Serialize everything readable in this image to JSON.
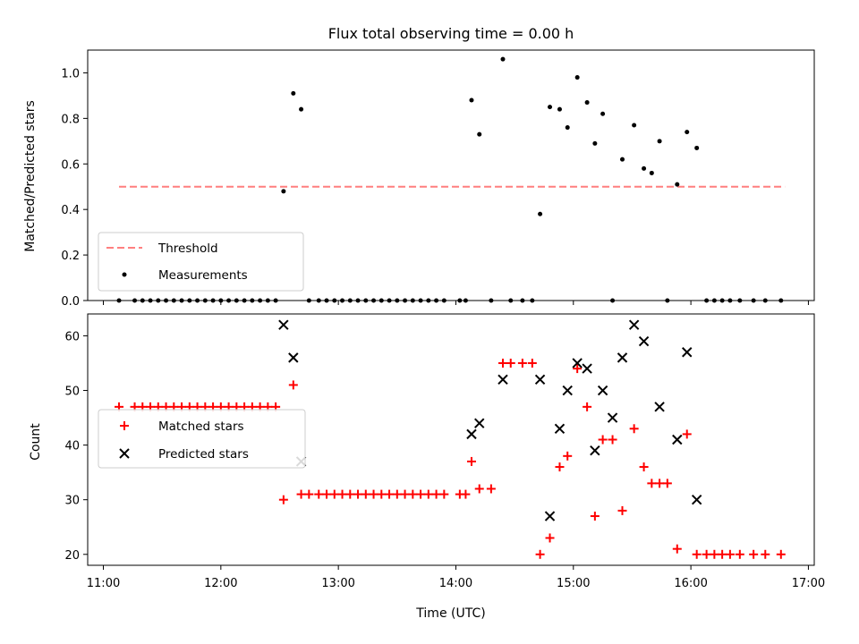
{
  "colors": {
    "threshold": "#ff7f7f",
    "measurements": "#000000",
    "matched": "#ff0000",
    "predicted": "#000000"
  },
  "chart_data": [
    {
      "type": "scatter",
      "title": "Flux total observing time = 0.00 h",
      "xlabel": "",
      "ylabel": "Matched/Predicted stars",
      "xlim": [
        "10:52",
        "17:03"
      ],
      "ylim": [
        0,
        1.1
      ],
      "yticks": [
        0.0,
        0.2,
        0.4,
        0.6,
        0.8,
        1.0
      ],
      "ytick_labels": [
        "0.0",
        "0.2",
        "0.4",
        "0.6",
        "0.8",
        "1.0"
      ],
      "xticks": [
        "11:00",
        "12:00",
        "13:00",
        "14:00",
        "15:00",
        "16:00",
        "17:00"
      ],
      "legend_position": "lower-left",
      "series": [
        {
          "name": "Threshold",
          "style": "dashed-line",
          "x": [
            "11:08",
            "16:48"
          ],
          "y": [
            0.5,
            0.5
          ]
        },
        {
          "name": "Measurements",
          "style": "dot",
          "x": [
            "11:08",
            "11:16",
            "11:20",
            "11:24",
            "11:28",
            "11:32",
            "11:36",
            "11:40",
            "11:44",
            "11:48",
            "11:52",
            "11:56",
            "12:00",
            "12:04",
            "12:08",
            "12:12",
            "12:16",
            "12:20",
            "12:24",
            "12:28",
            "12:32",
            "12:37",
            "12:41",
            "12:45",
            "12:50",
            "12:54",
            "12:58",
            "13:02",
            "13:06",
            "13:10",
            "13:14",
            "13:18",
            "13:22",
            "13:26",
            "13:30",
            "13:34",
            "13:38",
            "13:42",
            "13:46",
            "13:50",
            "13:54",
            "14:02",
            "14:05",
            "14:08",
            "14:12",
            "14:18",
            "14:24",
            "14:28",
            "14:34",
            "14:39",
            "14:43",
            "14:48",
            "14:53",
            "14:57",
            "15:02",
            "15:07",
            "15:11",
            "15:15",
            "15:20",
            "15:25",
            "15:31",
            "15:36",
            "15:40",
            "15:44",
            "15:48",
            "15:53",
            "15:58",
            "16:03",
            "16:08",
            "16:12",
            "16:16",
            "16:20",
            "16:25",
            "16:32",
            "16:38",
            "16:46"
          ],
          "y": [
            0,
            0,
            0,
            0,
            0,
            0,
            0,
            0,
            0,
            0,
            0,
            0,
            0,
            0,
            0,
            0,
            0,
            0,
            0,
            0,
            0.48,
            0.91,
            0.84,
            0,
            0,
            0,
            0,
            0,
            0,
            0,
            0,
            0,
            0,
            0,
            0,
            0,
            0,
            0,
            0,
            0,
            0,
            0,
            0,
            0.88,
            0.73,
            0,
            1.06,
            0,
            0,
            0,
            0.38,
            0.85,
            0.84,
            0.76,
            0.98,
            0.87,
            0.69,
            0.82,
            0,
            0.62,
            0.77,
            0.58,
            0.56,
            0.7,
            0,
            0.51,
            0.74,
            0.67,
            0,
            0,
            0,
            0,
            0,
            0,
            0,
            0
          ]
        }
      ]
    },
    {
      "type": "scatter",
      "title": "",
      "xlabel": "Time (UTC)",
      "ylabel": "Count",
      "xlim": [
        "10:52",
        "17:03"
      ],
      "ylim": [
        18,
        64
      ],
      "yticks": [
        20,
        30,
        40,
        50,
        60
      ],
      "ytick_labels": [
        "20",
        "30",
        "40",
        "50",
        "60"
      ],
      "xticks": [
        "11:00",
        "12:00",
        "13:00",
        "14:00",
        "15:00",
        "16:00",
        "17:00"
      ],
      "legend_position": "center-left",
      "series": [
        {
          "name": "Matched stars",
          "style": "plus",
          "x": [
            "11:08",
            "11:16",
            "11:20",
            "11:24",
            "11:28",
            "11:32",
            "11:36",
            "11:40",
            "11:44",
            "11:48",
            "11:52",
            "11:56",
            "12:00",
            "12:04",
            "12:08",
            "12:12",
            "12:16",
            "12:20",
            "12:24",
            "12:28",
            "12:32",
            "12:37",
            "12:41",
            "12:45",
            "12:50",
            "12:54",
            "12:58",
            "13:02",
            "13:06",
            "13:10",
            "13:14",
            "13:18",
            "13:22",
            "13:26",
            "13:30",
            "13:34",
            "13:38",
            "13:42",
            "13:46",
            "13:50",
            "13:54",
            "14:02",
            "14:05",
            "14:08",
            "14:12",
            "14:18",
            "14:24",
            "14:28",
            "14:34",
            "14:39",
            "14:43",
            "14:48",
            "14:53",
            "14:57",
            "15:02",
            "15:07",
            "15:11",
            "15:15",
            "15:20",
            "15:25",
            "15:31",
            "15:36",
            "15:40",
            "15:44",
            "15:48",
            "15:53",
            "15:58",
            "16:03",
            "16:08",
            "16:12",
            "16:16",
            "16:20",
            "16:25",
            "16:32",
            "16:38",
            "16:46"
          ],
          "y": [
            47,
            47,
            47,
            47,
            47,
            47,
            47,
            47,
            47,
            47,
            47,
            47,
            47,
            47,
            47,
            47,
            47,
            47,
            47,
            47,
            30,
            51,
            31,
            31,
            31,
            31,
            31,
            31,
            31,
            31,
            31,
            31,
            31,
            31,
            31,
            31,
            31,
            31,
            31,
            31,
            31,
            31,
            31,
            37,
            32,
            32,
            55,
            55,
            55,
            55,
            20,
            23,
            36,
            38,
            54,
            47,
            27,
            41,
            41,
            28,
            43,
            36,
            33,
            33,
            33,
            21,
            42,
            20,
            20,
            20,
            20,
            20,
            20,
            20,
            20,
            20
          ]
        },
        {
          "name": "Predicted stars",
          "style": "x",
          "x": [
            "12:32",
            "12:37",
            "12:41",
            "14:08",
            "14:12",
            "14:24",
            "14:43",
            "14:48",
            "14:53",
            "14:57",
            "15:02",
            "15:07",
            "15:11",
            "15:15",
            "15:20",
            "15:25",
            "15:31",
            "15:36",
            "15:44",
            "15:53",
            "15:58",
            "16:03"
          ],
          "y": [
            62,
            56,
            37,
            42,
            44,
            52,
            52,
            27,
            43,
            50,
            55,
            54,
            39,
            50,
            45,
            56,
            62,
            59,
            47,
            41,
            57,
            30
          ]
        }
      ]
    }
  ]
}
